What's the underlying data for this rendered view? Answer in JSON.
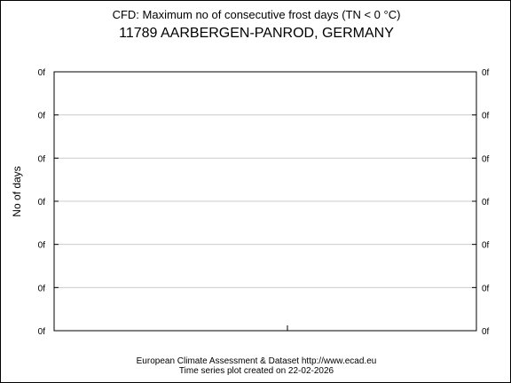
{
  "chart_data": {
    "type": "line",
    "title": "CFD: Maximum no of consecutive frost days (TN < 0 °C)",
    "subtitle": "11789 AARBERGEN-PANROD, GERMANY",
    "xlabel": "",
    "ylabel": "No of days",
    "y_tick_labels": [
      "0f",
      "0f",
      "0f",
      "0f",
      "0f",
      "0f",
      "0f"
    ],
    "series": [],
    "grid": true,
    "legend": "none"
  },
  "footer": {
    "line1": "European Climate Assessment & Dataset  http://www.ecad.eu",
    "line2": "Time series plot created on 22-02-2026"
  },
  "colors": {
    "axis": "#000000",
    "grid": "#cccccc",
    "background": "#ffffff"
  }
}
